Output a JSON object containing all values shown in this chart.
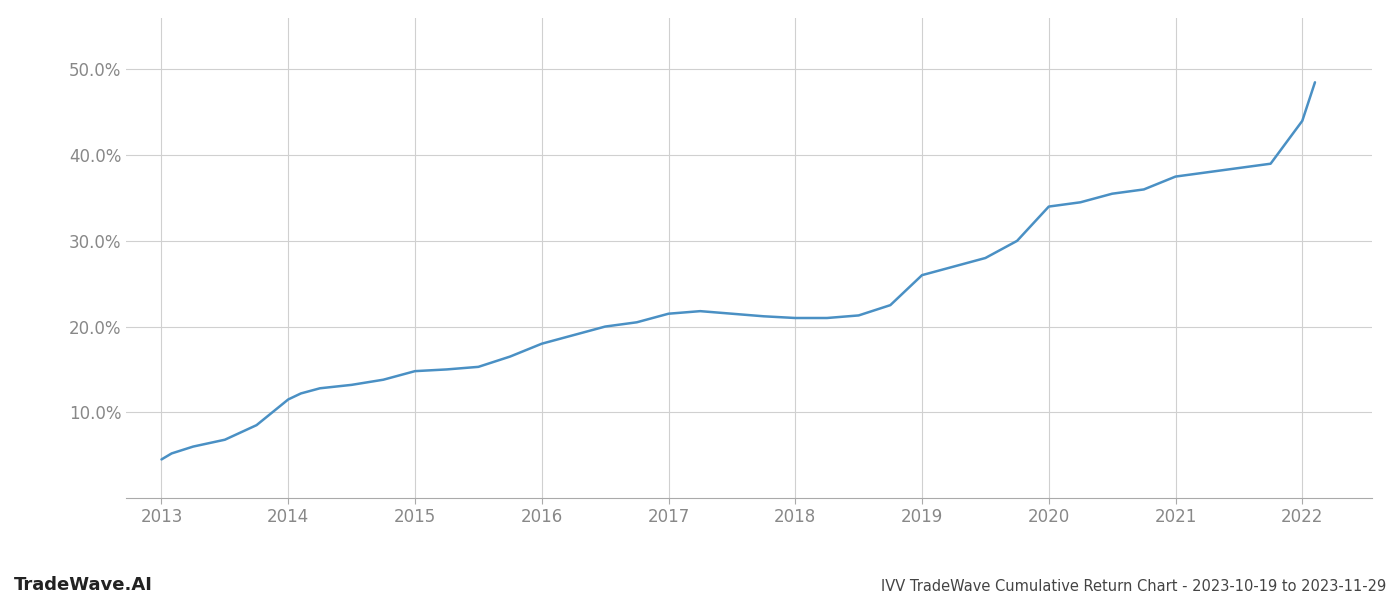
{
  "x_years": [
    2013.0,
    2013.08,
    2013.25,
    2013.5,
    2013.75,
    2014.0,
    2014.1,
    2014.25,
    2014.5,
    2014.75,
    2015.0,
    2015.25,
    2015.5,
    2015.75,
    2016.0,
    2016.25,
    2016.5,
    2016.75,
    2017.0,
    2017.25,
    2017.5,
    2017.75,
    2018.0,
    2018.25,
    2018.5,
    2018.75,
    2019.0,
    2019.25,
    2019.5,
    2019.75,
    2020.0,
    2020.25,
    2020.5,
    2020.75,
    2021.0,
    2021.25,
    2021.5,
    2021.75,
    2022.0,
    2022.1
  ],
  "y_values": [
    4.5,
    5.2,
    6.0,
    6.8,
    8.5,
    11.5,
    12.2,
    12.8,
    13.2,
    13.8,
    14.8,
    15.0,
    15.3,
    16.5,
    18.0,
    19.0,
    20.0,
    20.5,
    21.5,
    21.8,
    21.5,
    21.2,
    21.0,
    21.0,
    21.3,
    22.5,
    26.0,
    27.0,
    28.0,
    30.0,
    34.0,
    34.5,
    35.5,
    36.0,
    37.5,
    38.0,
    38.5,
    39.0,
    44.0,
    48.5
  ],
  "line_color": "#4a90c4",
  "line_width": 1.8,
  "background_color": "#ffffff",
  "grid_color": "#d0d0d0",
  "title": "IVV TradeWave Cumulative Return Chart - 2023-10-19 to 2023-11-29",
  "watermark": "TradeWave.AI",
  "ytick_labels": [
    "10.0%",
    "20.0%",
    "30.0%",
    "40.0%",
    "50.0%"
  ],
  "ytick_values": [
    10,
    20,
    30,
    40,
    50
  ],
  "xtick_values": [
    2013,
    2014,
    2015,
    2016,
    2017,
    2018,
    2019,
    2020,
    2021,
    2022
  ],
  "xlim": [
    2012.72,
    2022.55
  ],
  "ylim": [
    0,
    56
  ],
  "figsize": [
    14.0,
    6.0
  ],
  "dpi": 100,
  "tick_color": "#888888",
  "title_fontsize": 10.5,
  "watermark_fontsize": 13,
  "axis_tick_fontsize": 12
}
